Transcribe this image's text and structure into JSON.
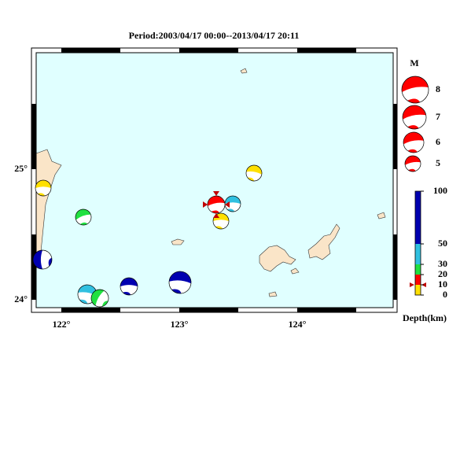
{
  "title": "Period:2003/04/17 00:00--2013/04/17 20:11",
  "map": {
    "lat_labels": [
      "25°",
      "24°"
    ],
    "lon_labels": [
      "122°",
      "123°",
      "124°"
    ]
  },
  "legend": {
    "title": "M",
    "magnitudes": [
      "8",
      "7",
      "6",
      "5"
    ]
  },
  "depth_scale": {
    "ticks": [
      "100",
      "50",
      "30",
      "20",
      "10",
      "0"
    ],
    "label": "Depth(km)"
  }
}
